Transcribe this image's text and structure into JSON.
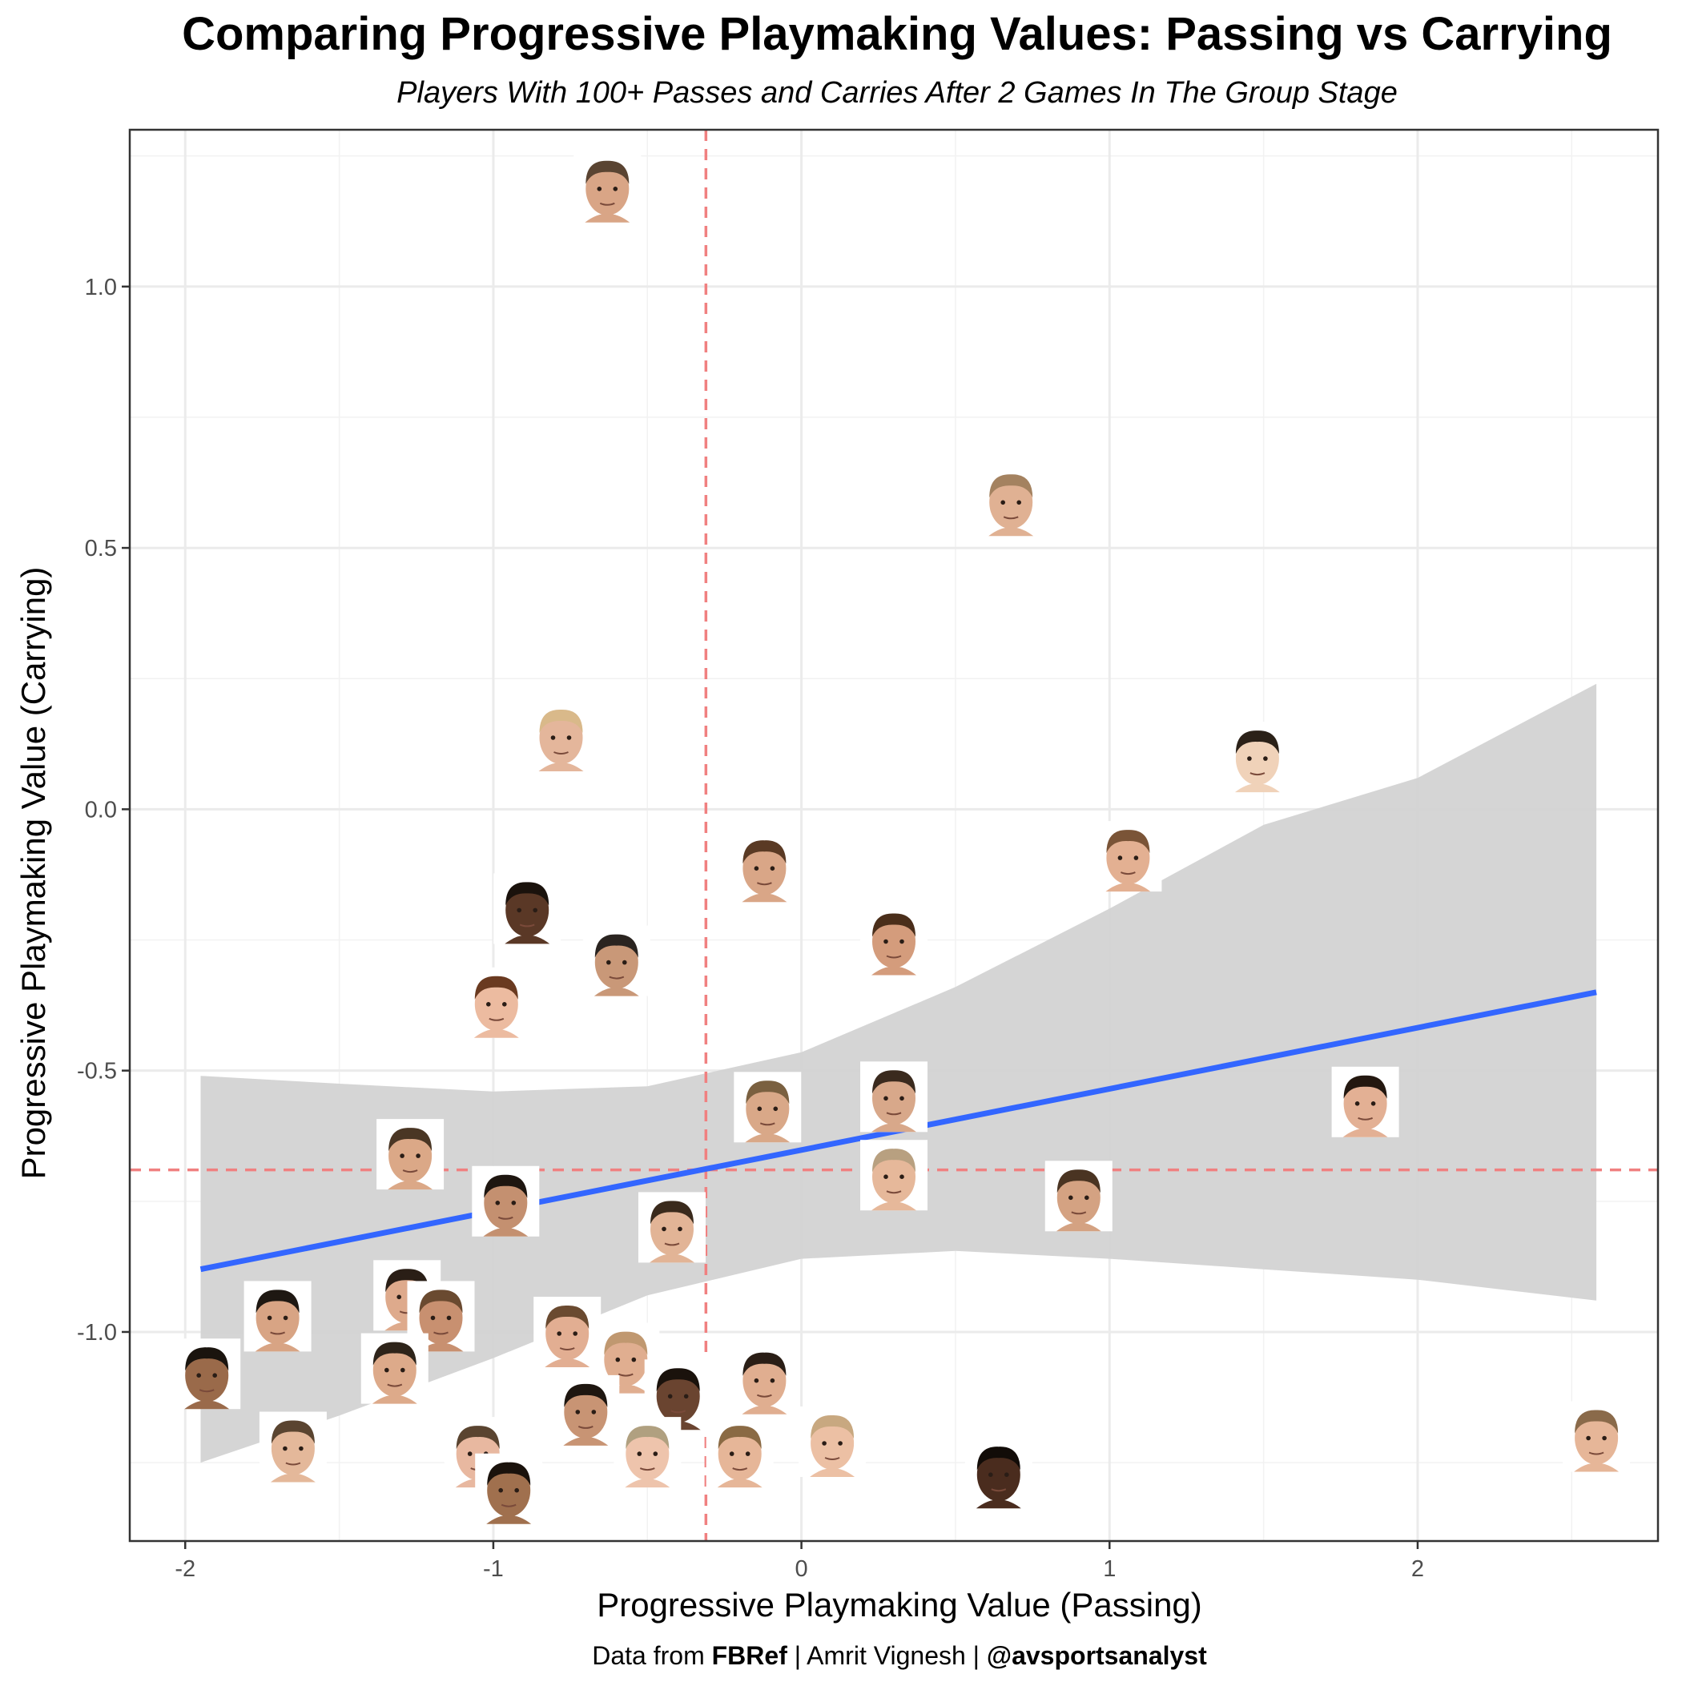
{
  "chart_data": {
    "type": "scatter",
    "title": "Comparing Progressive Playmaking Values: Passing vs Carrying",
    "subtitle": "Players With 100+ Passes and Carries After 2 Games In The Group Stage",
    "xlabel": "Progressive Playmaking Value (Passing)",
    "ylabel": "Progressive Playmaking Value (Carrying)",
    "caption": {
      "prefix": "Data from ",
      "source": "FBRef",
      "middle": " | Amrit Vignesh | ",
      "handle": "@avsportsanalyst"
    },
    "xlim": [
      -2.18,
      2.78
    ],
    "ylim": [
      -1.4,
      1.3
    ],
    "x_ticks": [
      {
        "value": -2,
        "label": "-2"
      },
      {
        "value": -1,
        "label": "-1"
      },
      {
        "value": 0,
        "label": "0"
      },
      {
        "value": 1,
        "label": "1"
      },
      {
        "value": 2,
        "label": "2"
      }
    ],
    "y_ticks": [
      {
        "value": -1.0,
        "label": "-1.0"
      },
      {
        "value": -0.5,
        "label": "-0.5"
      },
      {
        "value": 0.0,
        "label": "0.0"
      },
      {
        "value": 0.5,
        "label": "0.5"
      },
      {
        "value": 1.0,
        "label": "1.0"
      }
    ],
    "grid": true,
    "reference_lines": {
      "x_mean": -0.31,
      "y_mean": -0.69,
      "color": "#f08080",
      "style": "dashed"
    },
    "trend": {
      "color": "#3366ff",
      "band_color": "#d3d3d3",
      "line": [
        {
          "x": -1.95,
          "y": -0.88
        },
        {
          "x": 2.58,
          "y": -0.35
        }
      ],
      "band_upper": [
        {
          "x": -1.95,
          "y": -0.51
        },
        {
          "x": -1.5,
          "y": -0.525
        },
        {
          "x": -1.0,
          "y": -0.54
        },
        {
          "x": -0.5,
          "y": -0.53
        },
        {
          "x": 0.0,
          "y": -0.465
        },
        {
          "x": 0.5,
          "y": -0.34
        },
        {
          "x": 1.0,
          "y": -0.19
        },
        {
          "x": 1.5,
          "y": -0.03
        },
        {
          "x": 2.0,
          "y": 0.06
        },
        {
          "x": 2.58,
          "y": 0.24
        }
      ],
      "band_lower": [
        {
          "x": -1.95,
          "y": -1.25
        },
        {
          "x": -1.5,
          "y": -1.16
        },
        {
          "x": -1.0,
          "y": -1.05
        },
        {
          "x": -0.5,
          "y": -0.93
        },
        {
          "x": 0.0,
          "y": -0.86
        },
        {
          "x": 0.5,
          "y": -0.845
        },
        {
          "x": 1.0,
          "y": -0.86
        },
        {
          "x": 1.5,
          "y": -0.88
        },
        {
          "x": 2.0,
          "y": -0.9
        },
        {
          "x": 2.58,
          "y": -0.94
        }
      ]
    },
    "points": [
      {
        "x": -0.63,
        "y": 1.19,
        "skin": "#d9a586",
        "hair": "#5a4432"
      },
      {
        "x": 0.68,
        "y": 0.59,
        "skin": "#e0b193",
        "hair": "#a48260"
      },
      {
        "x": -0.78,
        "y": 0.14,
        "skin": "#e4b69b",
        "hair": "#d9b98a"
      },
      {
        "x": 1.48,
        "y": 0.1,
        "skin": "#f0d2b9",
        "hair": "#2b2118"
      },
      {
        "x": -0.12,
        "y": -0.11,
        "skin": "#d9a687",
        "hair": "#5a3a24"
      },
      {
        "x": 1.06,
        "y": -0.09,
        "skin": "#e3b092",
        "hair": "#7a5437"
      },
      {
        "x": -0.89,
        "y": -0.19,
        "skin": "#5a3826",
        "hair": "#1a120c"
      },
      {
        "x": -0.6,
        "y": -0.29,
        "skin": "#c99878",
        "hair": "#2a2420"
      },
      {
        "x": 0.3,
        "y": -0.25,
        "skin": "#d49c7c",
        "hair": "#4a2e1a"
      },
      {
        "x": -0.99,
        "y": -0.37,
        "skin": "#ecbba0",
        "hair": "#6a3a20"
      },
      {
        "x": -0.11,
        "y": -0.57,
        "skin": "#d9a888",
        "hair": "#7a6040"
      },
      {
        "x": 0.3,
        "y": -0.55,
        "skin": "#d8a88a",
        "hair": "#3a2a1e"
      },
      {
        "x": 1.83,
        "y": -0.56,
        "skin": "#e3b094",
        "hair": "#241810"
      },
      {
        "x": -1.27,
        "y": -0.66,
        "skin": "#dba887",
        "hair": "#4a3624"
      },
      {
        "x": 0.3,
        "y": -0.7,
        "skin": "#e6b89a",
        "hair": "#b8a080"
      },
      {
        "x": -0.96,
        "y": -0.75,
        "skin": "#c49070",
        "hair": "#1e1610"
      },
      {
        "x": 0.9,
        "y": -0.74,
        "skin": "#d4a282",
        "hair": "#4a3422"
      },
      {
        "x": -0.42,
        "y": -0.8,
        "skin": "#e2b496",
        "hair": "#3a2a1c"
      },
      {
        "x": -1.28,
        "y": -0.93,
        "skin": "#deaa8c",
        "hair": "#2a1e16"
      },
      {
        "x": -1.7,
        "y": -0.97,
        "skin": "#d8a484",
        "hair": "#1e1812"
      },
      {
        "x": -1.17,
        "y": -0.97,
        "skin": "#c89070",
        "hair": "#6a4a30"
      },
      {
        "x": -0.76,
        "y": -1.0,
        "skin": "#e2ae92",
        "hair": "#6a4a30"
      },
      {
        "x": -0.57,
        "y": -1.05,
        "skin": "#e0ae90",
        "hair": "#c09870"
      },
      {
        "x": -1.32,
        "y": -1.07,
        "skin": "#ddaa8a",
        "hair": "#2e241a"
      },
      {
        "x": -1.93,
        "y": -1.08,
        "skin": "#9a6a4a",
        "hair": "#1a140e"
      },
      {
        "x": -0.12,
        "y": -1.09,
        "skin": "#e0ae90",
        "hair": "#2a1e16"
      },
      {
        "x": -0.4,
        "y": -1.12,
        "skin": "#6a4430",
        "hair": "#1a120c"
      },
      {
        "x": -0.7,
        "y": -1.15,
        "skin": "#c89474",
        "hair": "#1e1610"
      },
      {
        "x": -1.65,
        "y": -1.22,
        "skin": "#e4b89a",
        "hair": "#5a4430"
      },
      {
        "x": 0.1,
        "y": -1.21,
        "skin": "#ecc0a4",
        "hair": "#c8a880"
      },
      {
        "x": -0.2,
        "y": -1.23,
        "skin": "#e6b698",
        "hair": "#8a6a44"
      },
      {
        "x": -0.5,
        "y": -1.23,
        "skin": "#eec4ac",
        "hair": "#b0a080"
      },
      {
        "x": -1.05,
        "y": -1.23,
        "skin": "#e8b8a0",
        "hair": "#5a4430"
      },
      {
        "x": -0.95,
        "y": -1.3,
        "skin": "#a0704e",
        "hair": "#1a120c"
      },
      {
        "x": 0.64,
        "y": -1.27,
        "skin": "#4a2c1e",
        "hair": "#120c08"
      },
      {
        "x": 2.58,
        "y": -1.2,
        "skin": "#e6b698",
        "hair": "#8a6a4a"
      }
    ]
  }
}
